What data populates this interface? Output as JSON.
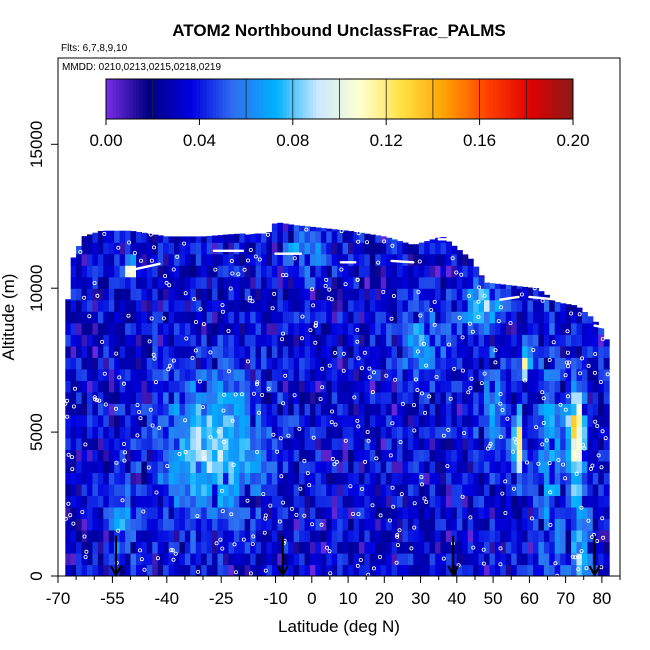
{
  "chart_data": {
    "type": "heatmap",
    "title": "ATOM2 Northbound UnclassFrac_PALMS",
    "subtitle_flights": "Flts: 6,7,8,9,10",
    "subtitle_dates": "MMDD: 0210,0213,0215,0218,0219",
    "xlabel": "Latitude (deg N)",
    "ylabel": "Altitude (m)",
    "xlim": [
      -70,
      85
    ],
    "ylim": [
      0,
      18000
    ],
    "x_ticks_major": [
      -70,
      -55,
      -40,
      -25,
      -10,
      0,
      10,
      20,
      30,
      40,
      50,
      60,
      70,
      80
    ],
    "x_ticks_minor": [
      -65,
      -60,
      -50,
      -45,
      -35,
      -30,
      -20,
      -15,
      -5,
      5,
      15,
      25,
      35,
      45,
      55,
      65,
      75,
      85
    ],
    "y_ticks": [
      0,
      5000,
      10000,
      15000
    ],
    "colorbar": {
      "min": 0.0,
      "max": 0.2,
      "tick_values": [
        0.0,
        0.04,
        0.08,
        0.12,
        0.16,
        0.2
      ],
      "tick_labels": [
        "0.00",
        "0.04",
        "0.08",
        "0.12",
        "0.16",
        "0.20"
      ],
      "colors": [
        "#7a2ee8",
        "#000080",
        "#0000e0",
        "#2f6ff0",
        "#00b0ff",
        "#cce8ff",
        "#ffffd0",
        "#ffe040",
        "#ffa000",
        "#ff4000",
        "#e00000",
        "#8b1a1a"
      ]
    },
    "profile_arrows_lat": [
      -54,
      -8,
      39,
      78
    ],
    "altitude_envelope": [
      [
        -68,
        8800
      ],
      [
        -66,
        11000
      ],
      [
        -63,
        11800
      ],
      [
        -58,
        12000
      ],
      [
        -50,
        12000
      ],
      [
        -45,
        11900
      ],
      [
        -40,
        11800
      ],
      [
        -30,
        11800
      ],
      [
        -20,
        11900
      ],
      [
        -12,
        11900
      ],
      [
        -10,
        12300
      ],
      [
        -5,
        12200
      ],
      [
        10,
        12000
      ],
      [
        20,
        11800
      ],
      [
        28,
        11500
      ],
      [
        36,
        11800
      ],
      [
        38,
        11600
      ],
      [
        44,
        11000
      ],
      [
        48,
        10200
      ],
      [
        55,
        10100
      ],
      [
        62,
        10000
      ],
      [
        68,
        9500
      ],
      [
        73,
        9400
      ],
      [
        77,
        9000
      ],
      [
        80,
        8600
      ],
      [
        82,
        8000
      ]
    ]
  }
}
